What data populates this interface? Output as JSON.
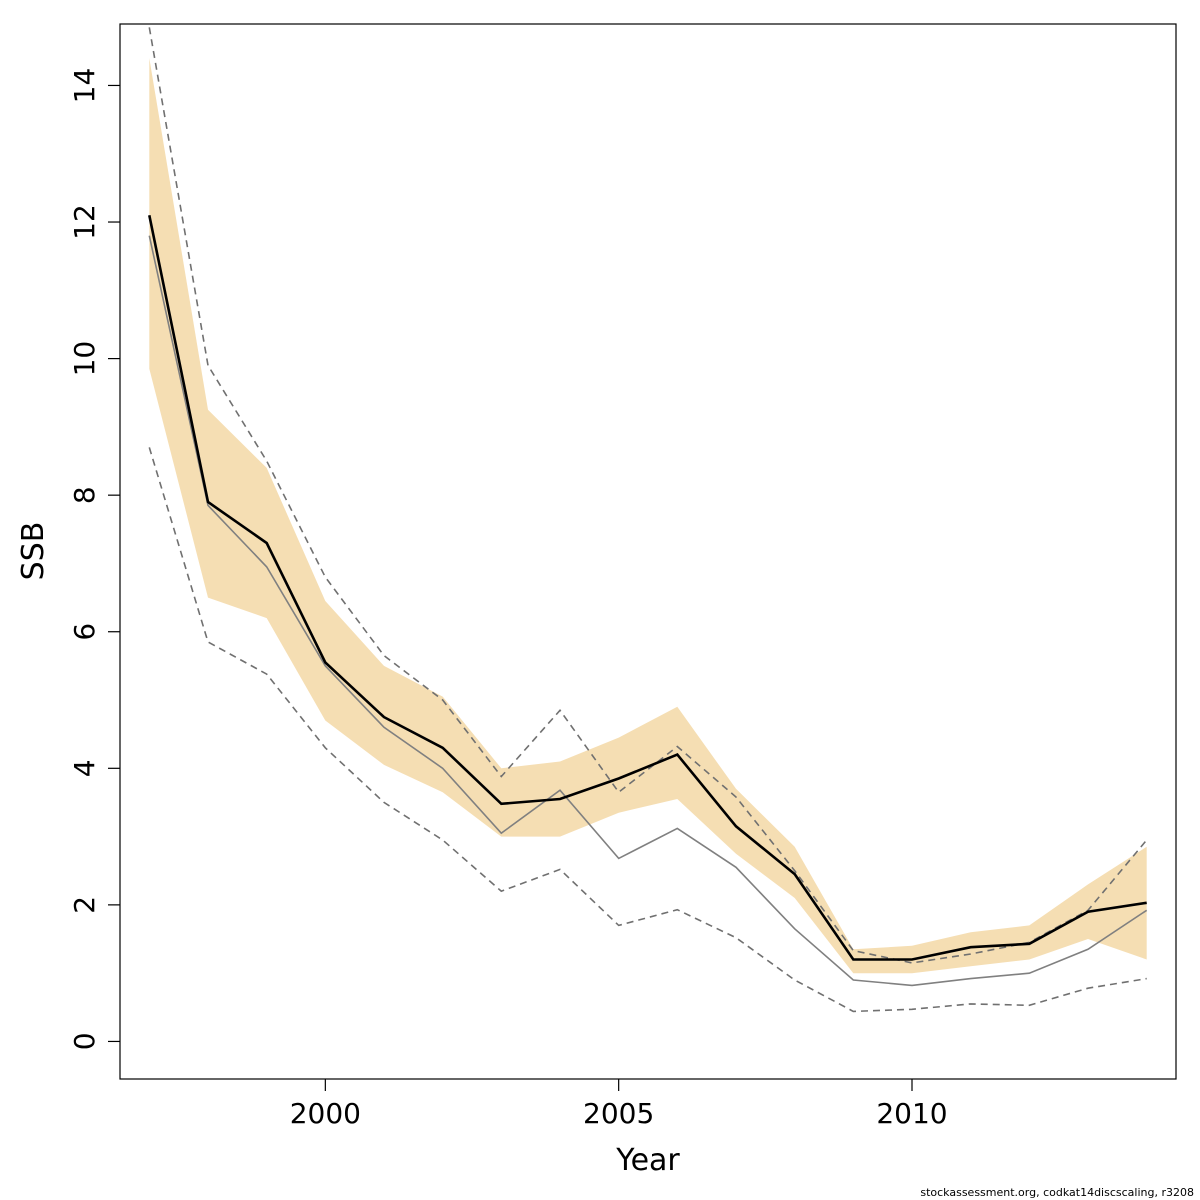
{
  "chart_data": {
    "type": "line",
    "xlabel": "Year",
    "ylabel": "SSB",
    "xlim": [
      1996.5,
      2014.5
    ],
    "ylim": [
      -0.55,
      14.9
    ],
    "x_ticks": [
      2000,
      2005,
      2010
    ],
    "y_ticks": [
      0,
      2,
      4,
      6,
      8,
      10,
      12,
      14
    ],
    "x": [
      1997,
      1998,
      1999,
      2000,
      2001,
      2002,
      2003,
      2004,
      2005,
      2006,
      2007,
      2008,
      2009,
      2010,
      2011,
      2012,
      2013,
      2014
    ],
    "band": {
      "lower": [
        9.85,
        6.5,
        6.2,
        4.7,
        4.05,
        3.65,
        3.0,
        3.0,
        3.35,
        3.55,
        2.75,
        2.1,
        1.0,
        1.0,
        1.1,
        1.2,
        1.5,
        1.2
      ],
      "upper": [
        14.4,
        9.25,
        8.4,
        6.45,
        5.5,
        5.05,
        4.0,
        4.1,
        4.45,
        4.9,
        3.7,
        2.85,
        1.35,
        1.4,
        1.6,
        1.7,
        2.3,
        2.85
      ],
      "color": "#f5deb3"
    },
    "series": [
      {
        "style": "solid-thick",
        "color": "#000000",
        "values": [
          12.1,
          7.9,
          7.3,
          5.55,
          4.75,
          4.3,
          3.48,
          3.55,
          3.85,
          4.2,
          3.15,
          2.45,
          1.2,
          1.2,
          1.38,
          1.43,
          1.9,
          2.03
        ]
      },
      {
        "style": "solid-thin",
        "color": "#808080",
        "values": [
          11.8,
          7.85,
          6.95,
          5.5,
          4.6,
          4.0,
          3.05,
          3.68,
          2.68,
          3.12,
          2.55,
          1.65,
          0.9,
          0.82,
          0.92,
          1.0,
          1.35,
          1.92
        ]
      },
      {
        "style": "dashed",
        "color": "#707070",
        "values": [
          14.85,
          9.9,
          8.5,
          6.8,
          5.65,
          5.0,
          3.88,
          4.85,
          3.65,
          4.32,
          3.58,
          2.5,
          1.33,
          1.15,
          1.28,
          1.45,
          1.92,
          2.95
        ]
      },
      {
        "style": "dashed",
        "color": "#707070",
        "values": [
          8.7,
          5.85,
          5.38,
          4.3,
          3.5,
          2.95,
          2.2,
          2.52,
          1.7,
          1.93,
          1.52,
          0.9,
          0.44,
          0.47,
          0.55,
          0.53,
          0.78,
          0.92
        ]
      }
    ]
  },
  "footer": {
    "text": "stockassessment.org, codkat14discscaling, r3208"
  }
}
